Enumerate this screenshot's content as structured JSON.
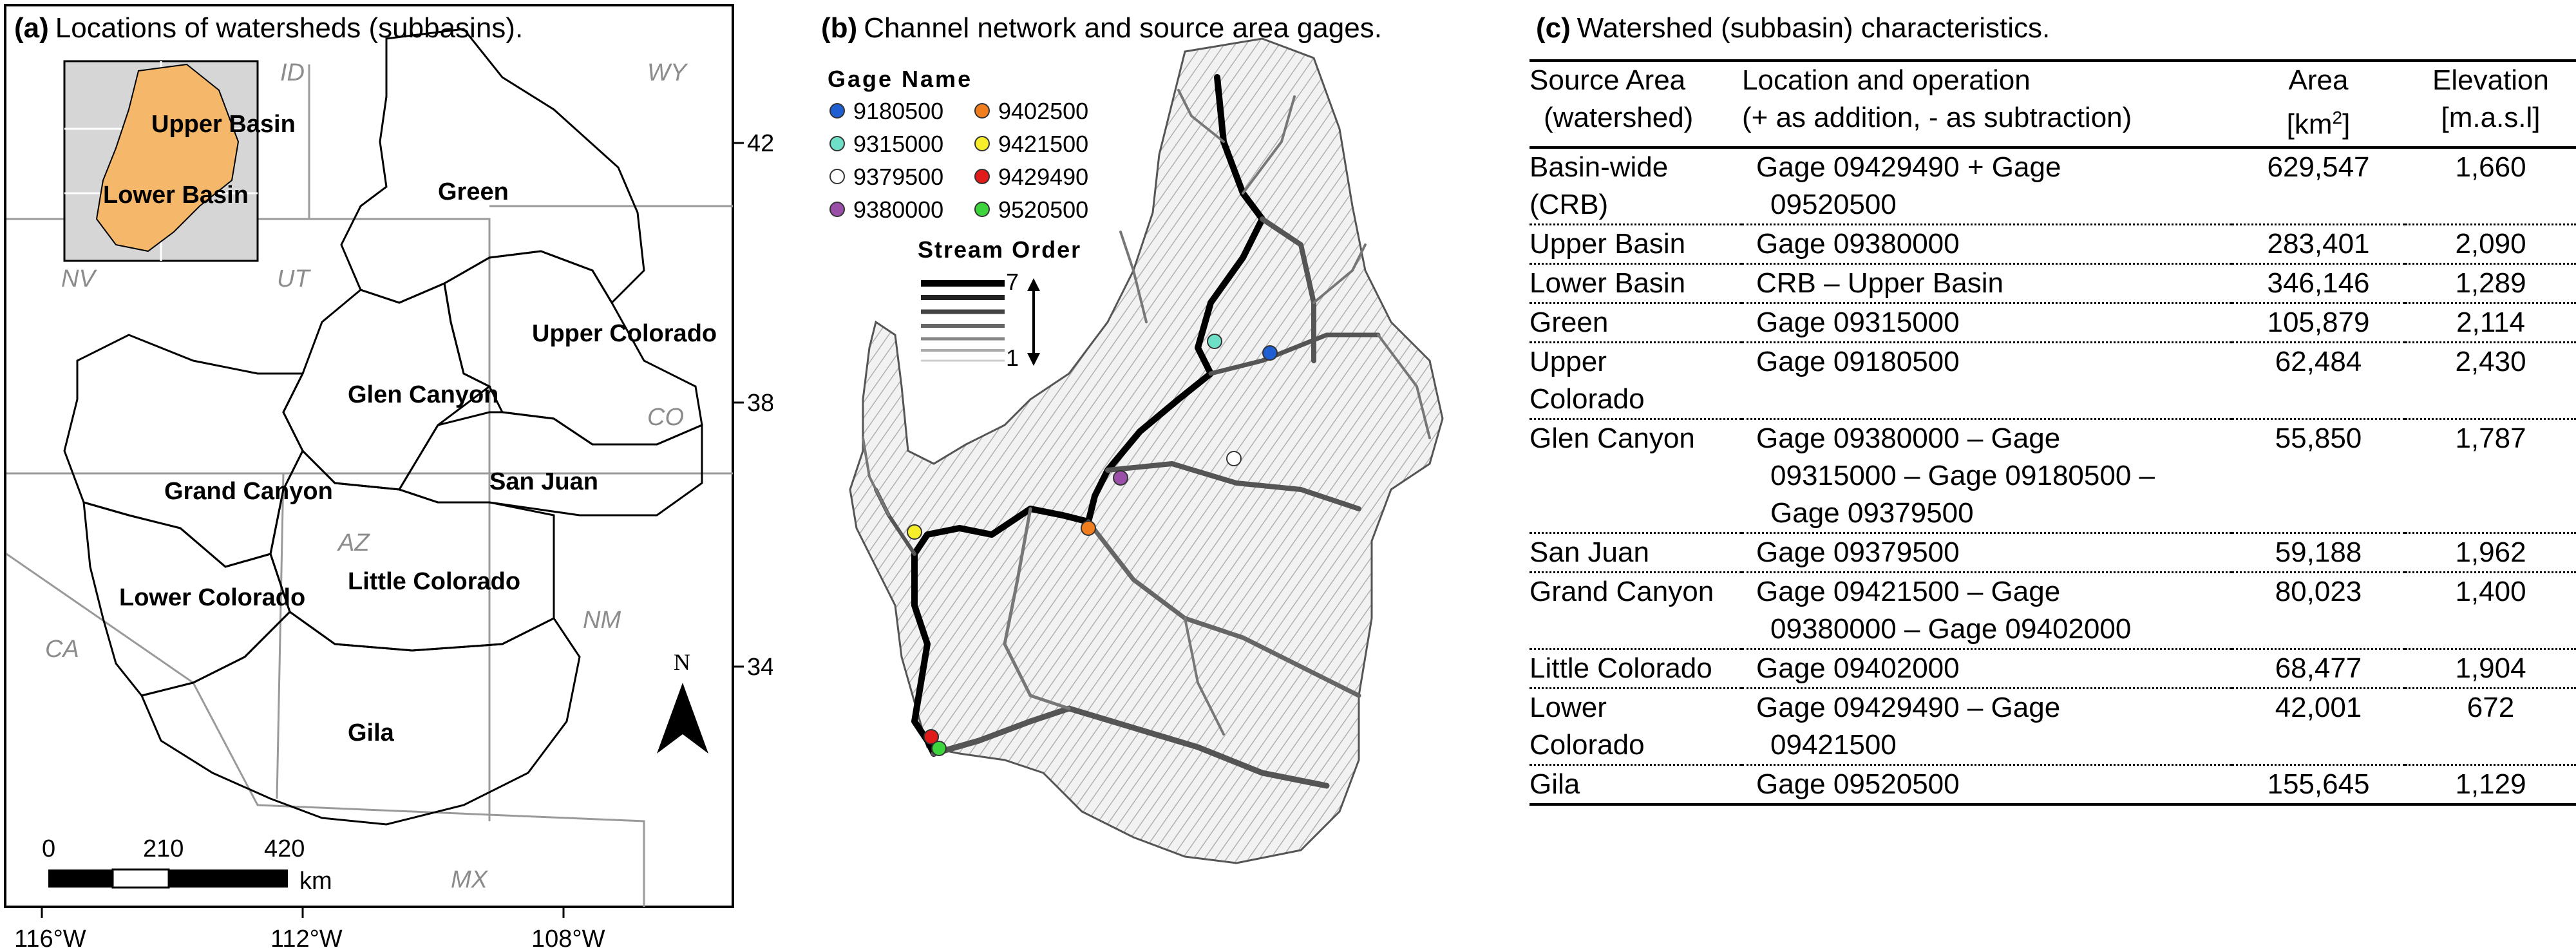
{
  "panel_a": {
    "title_tag": "(a)",
    "title": "Locations of watersheds (subbasins).",
    "inset": {
      "upper": "Upper Basin",
      "lower": "Lower Basin"
    },
    "states": [
      "ID",
      "WY",
      "NV",
      "UT",
      "CO",
      "AZ",
      "NM",
      "CA",
      "MX"
    ],
    "watersheds": [
      "Green",
      "Upper Colorado",
      "Glen Canyon",
      "San Juan",
      "Grand Canyon",
      "Little Colorado",
      "Lower Colorado",
      "Gila"
    ],
    "lat_ticks": [
      "42°N",
      "38°N",
      "34°N"
    ],
    "lon_ticks": [
      "116°W",
      "112°W",
      "108°W"
    ],
    "scale_labels": [
      "0",
      "210",
      "420"
    ],
    "scale_unit": "km",
    "north": "N"
  },
  "panel_b": {
    "title_tag": "(b)",
    "title": "Channel network and source area gages.",
    "legend_title": "Gage Name",
    "gages": [
      {
        "name": "9180500",
        "color": "#1f5fd1"
      },
      {
        "name": "9402500",
        "color": "#f07d1e"
      },
      {
        "name": "9315000",
        "color": "#6fe0c8"
      },
      {
        "name": "9421500",
        "color": "#f6ee2a"
      },
      {
        "name": "9379500",
        "color": "#ffffff"
      },
      {
        "name": "9429490",
        "color": "#e11a1a"
      },
      {
        "name": "9380000",
        "color": "#9a4fa8"
      },
      {
        "name": "9520500",
        "color": "#3dd43d"
      }
    ],
    "stream_title": "Stream Order",
    "stream_max": "7",
    "stream_min": "1"
  },
  "panel_c": {
    "title_tag": "(c)",
    "title": "Watershed (subbasin) characteristics.",
    "headers": {
      "c1a": "Source Area",
      "c1b": "(watershed)",
      "c2a": "Location and operation",
      "c2b": "(+ as addition, - as subtraction)",
      "c3a": "Area",
      "c3b": "[km",
      "c3sup": "2",
      "c3c": "]",
      "c4a": "Elevation",
      "c4b": "[m.a.s.l]"
    },
    "rows": [
      {
        "area_name": [
          "Basin-wide",
          "(CRB)"
        ],
        "operation": [
          "Gage 09429490 + Gage",
          "09520500"
        ],
        "area": "629,547",
        "elev": "1,660"
      },
      {
        "area_name": [
          "Upper Basin"
        ],
        "operation": [
          "Gage 09380000"
        ],
        "area": "283,401",
        "elev": "2,090"
      },
      {
        "area_name": [
          "Lower Basin"
        ],
        "operation": [
          "CRB – Upper Basin"
        ],
        "area": "346,146",
        "elev": "1,289"
      },
      {
        "area_name": [
          "Green"
        ],
        "operation": [
          "Gage 09315000"
        ],
        "area": "105,879",
        "elev": "2,114"
      },
      {
        "area_name": [
          "Upper",
          "Colorado"
        ],
        "operation": [
          "Gage 09180500"
        ],
        "area": "62,484",
        "elev": "2,430"
      },
      {
        "area_name": [
          "Glen Canyon"
        ],
        "operation": [
          "Gage 09380000 – Gage",
          "09315000 – Gage 09180500 –",
          "Gage 09379500"
        ],
        "area": "55,850",
        "elev": "1,787"
      },
      {
        "area_name": [
          "San Juan"
        ],
        "operation": [
          "Gage 09379500"
        ],
        "area": "59,188",
        "elev": "1,962"
      },
      {
        "area_name": [
          "Grand Canyon"
        ],
        "operation": [
          "Gage 09421500 – Gage",
          "09380000 – Gage 09402000"
        ],
        "area": "80,023",
        "elev": "1,400"
      },
      {
        "area_name": [
          "Little Colorado"
        ],
        "operation": [
          "Gage 09402000"
        ],
        "area": "68,477",
        "elev": "1,904"
      },
      {
        "area_name": [
          "Lower",
          "Colorado"
        ],
        "operation": [
          "Gage 09429490 – Gage",
          "09421500"
        ],
        "area": "42,001",
        "elev": "672"
      },
      {
        "area_name": [
          "Gila"
        ],
        "operation": [
          "Gage 09520500"
        ],
        "area": "155,645",
        "elev": "1,129"
      }
    ]
  }
}
